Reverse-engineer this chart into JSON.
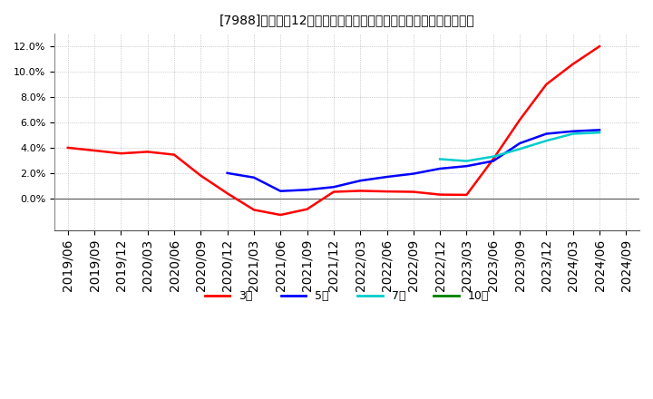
{
  "title": "[7988]　売上高12か月移動合計の対前年同期増減率の平均値の推移",
  "ylim": [
    -0.025,
    0.13
  ],
  "yticks": [
    0.0,
    0.02,
    0.04,
    0.06,
    0.08,
    0.1,
    0.12
  ],
  "xtick_labels": [
    "2019/06",
    "2019/09",
    "2019/12",
    "2020/03",
    "2020/06",
    "2020/09",
    "2020/12",
    "2021/03",
    "2021/06",
    "2021/09",
    "2021/12",
    "2022/03",
    "2022/06",
    "2022/09",
    "2022/12",
    "2023/03",
    "2023/06",
    "2023/09",
    "2023/12",
    "2024/03",
    "2024/06",
    "2024/09"
  ],
  "series": {
    "3year": {
      "color": "#ff0000",
      "label": "3年",
      "x": [
        0,
        1,
        2,
        3,
        4,
        5,
        6,
        7,
        8,
        9,
        10,
        11,
        12,
        13,
        14,
        15,
        16,
        17,
        18,
        19,
        20
      ],
      "y": [
        0.04,
        0.0378,
        0.0355,
        0.0368,
        0.0345,
        0.018,
        0.004,
        -0.009,
        -0.013,
        -0.0085,
        0.0052,
        0.006,
        0.0055,
        0.0052,
        0.003,
        0.0028,
        0.031,
        0.062,
        0.09,
        0.106,
        0.12
      ]
    },
    "5year": {
      "color": "#0000ff",
      "label": "5年",
      "x": [
        6,
        7,
        8,
        9,
        10,
        11,
        12,
        13,
        14,
        15,
        16,
        17,
        18,
        19,
        20
      ],
      "y": [
        0.02,
        0.0165,
        0.0058,
        0.0068,
        0.009,
        0.014,
        0.017,
        0.0195,
        0.0235,
        0.0255,
        0.0295,
        0.0435,
        0.051,
        0.053,
        0.054
      ]
    },
    "7year": {
      "color": "#00cccc",
      "label": "7年",
      "x": [
        14,
        15,
        16,
        17,
        18,
        19,
        20
      ],
      "y": [
        0.031,
        0.0295,
        0.033,
        0.039,
        0.0455,
        0.051,
        0.052
      ]
    },
    "10year": {
      "color": "#008000",
      "label": "10年",
      "x": [],
      "y": []
    }
  },
  "background_color": "#ffffff",
  "plot_bg_color": "#ffffff",
  "grid_color": "#aaaaaa",
  "legend_colors": [
    "#ff0000",
    "#0000ff",
    "#00cccc",
    "#008000"
  ],
  "legend_labels": [
    "3年",
    "5年",
    "7年",
    "10年"
  ]
}
